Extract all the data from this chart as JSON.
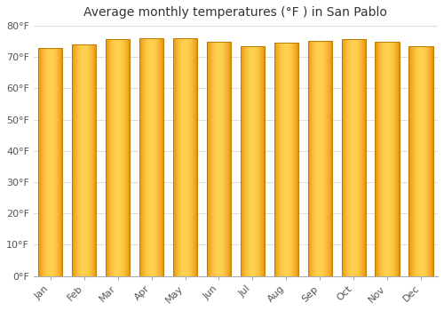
{
  "title": "Average monthly temperatures (°F ) in San Pablo",
  "months": [
    "Jan",
    "Feb",
    "Mar",
    "Apr",
    "May",
    "Jun",
    "Jul",
    "Aug",
    "Sep",
    "Oct",
    "Nov",
    "Dec"
  ],
  "values": [
    73.0,
    74.0,
    75.8,
    76.0,
    75.9,
    74.8,
    73.5,
    74.5,
    75.1,
    75.8,
    74.8,
    73.5
  ],
  "ylim": [
    0,
    80
  ],
  "yticks": [
    0,
    10,
    20,
    30,
    40,
    50,
    60,
    70,
    80
  ],
  "ytick_labels": [
    "0°F",
    "10°F",
    "20°F",
    "30°F",
    "40°F",
    "50°F",
    "60°F",
    "70°F",
    "80°F"
  ],
  "bar_color_left": "#E8940A",
  "bar_color_center": "#FFD050",
  "bar_color_right": "#E8940A",
  "bar_border_color": "#C07800",
  "background_color": "#FFFFFF",
  "grid_color": "#DDDDDD",
  "title_fontsize": 10,
  "tick_fontsize": 8,
  "bar_width": 0.72,
  "gradient_bands": 40
}
